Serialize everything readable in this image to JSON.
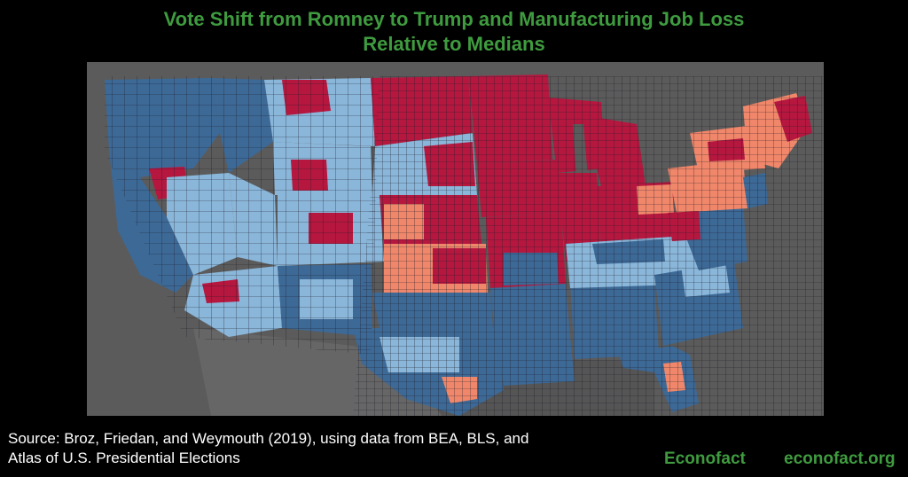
{
  "title": {
    "line1": "Vote Shift from Romney to Trump and Manufacturing Job Loss",
    "line2": "Relative to Medians"
  },
  "source": {
    "line1": "Source: Broz, Friedan, and Weymouth (2019), using data from BEA, BLS, and",
    "line2": "Atlas of U.S. Presidential Elections"
  },
  "brand": "Econofact",
  "site": "econofact.org",
  "colors": {
    "title_green": "#3f9b3f",
    "dark_red": "#b5173f",
    "salmon": "#f0876a",
    "dark_blue": "#3d6996",
    "light_blue": "#8ab6d9",
    "no_data_gray": "#6a6a6a",
    "basemap_gray": "#5b5b5b"
  }
}
